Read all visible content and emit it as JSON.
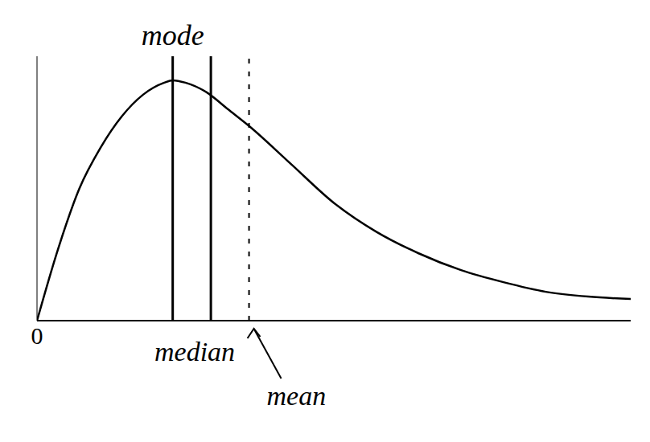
{
  "chart_data": {
    "type": "line",
    "x": [
      0,
      0.5,
      1,
      1.5,
      2,
      2.5,
      3,
      3.2,
      3.5,
      4,
      4.5,
      5,
      6,
      7,
      8,
      9,
      10,
      11,
      12,
      13,
      14
    ],
    "values": [
      0,
      0.3,
      0.55,
      0.72,
      0.85,
      0.94,
      0.99,
      1.0,
      0.99,
      0.95,
      0.88,
      0.81,
      0.65,
      0.49,
      0.37,
      0.28,
      0.21,
      0.16,
      0.12,
      0.1,
      0.09
    ],
    "color": "#000000",
    "xlim": [
      0,
      14
    ],
    "xticks": [
      0
    ],
    "ylim": [
      0,
      1.1
    ],
    "tick_labels": "x",
    "grid": false,
    "annotations": [
      {
        "text": "mode",
        "x": 3.2
      },
      {
        "text": "median",
        "x": 4.1
      },
      {
        "text": "mean",
        "x": 5
      }
    ]
  }
}
